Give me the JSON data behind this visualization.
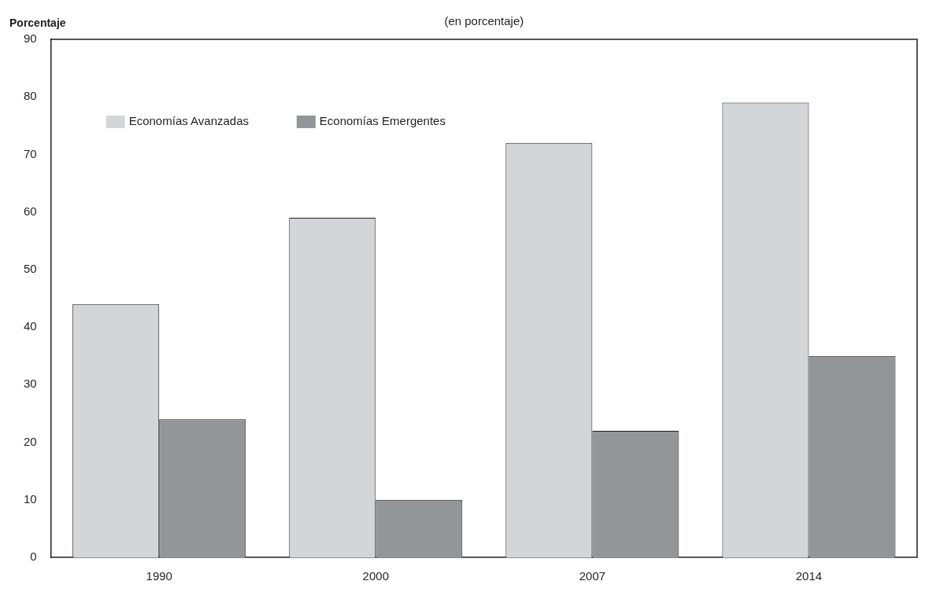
{
  "chart_data": {
    "type": "bar",
    "subtitle": "(en porcentaje)",
    "ylabel": "Porcentaje",
    "categories": [
      "1990",
      "2000",
      "2007",
      "2014"
    ],
    "series": [
      {
        "name": "Economías Avanzadas",
        "color": "#d4d5d8",
        "values": [
          44,
          59,
          72,
          79
        ]
      },
      {
        "name": "Economías Emergentes",
        "color": "#949598",
        "values": [
          24,
          10,
          22,
          35
        ]
      }
    ],
    "ylim": [
      0,
      90
    ],
    "yticks": [
      0,
      10,
      20,
      30,
      40,
      50,
      60,
      70,
      80,
      90
    ],
    "grid": false,
    "legend": "top left"
  }
}
